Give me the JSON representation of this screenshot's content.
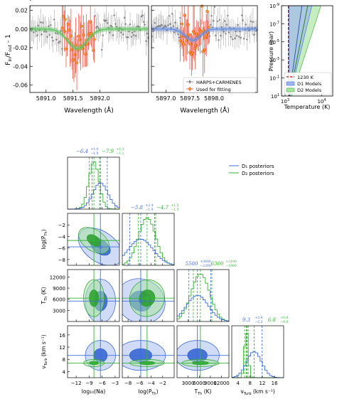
{
  "colors": {
    "data_gray": "#7f7f7f",
    "fit_red": "#e8402c",
    "fit_orange": "#f5a020",
    "model_green": "#5fc45f",
    "model_blue": "#6a8fe0",
    "d1_blue": "#3b63d6",
    "d2_green": "#2faa2f",
    "temp_red": "#cc0000",
    "contour_blue": "#3f6fd8",
    "contour_green": "#33b533"
  },
  "chart_data": [
    {
      "id": "spectrum-d2",
      "type": "scatter",
      "title": "",
      "xlabel": "Wavelength (Å)",
      "ylabel": "F_in/F_out - 1",
      "xlim": [
        5890.7,
        5892.9
      ],
      "ylim": [
        -0.068,
        0.025
      ],
      "xticks": [
        "5891.0",
        "5891.5",
        "5892.0"
      ],
      "xtick_values": [
        5891.0,
        5891.5,
        5892.0
      ],
      "yticks": [
        "0.02",
        "0.00",
        "-0.02",
        "-0.04",
        "-0.06"
      ],
      "ytick_values": [
        0.02,
        0.0,
        -0.02,
        -0.04,
        -0.06
      ],
      "line_center": 5891.58,
      "line_depth": -0.021,
      "line_width": 0.18,
      "fit_window": [
        5891.3,
        5891.9
      ],
      "grid": false
    },
    {
      "id": "spectrum-d1",
      "type": "scatter",
      "title": "",
      "xlabel": "Wavelength (Å)",
      "xlim": [
        5896.7,
        5898.9
      ],
      "ylim": [
        -0.068,
        0.025
      ],
      "xticks": [
        "5897.0",
        "5897.5",
        "5898.0"
      ],
      "xtick_values": [
        5897.0,
        5897.5,
        5898.0
      ],
      "line_center": 5897.56,
      "line_depth": -0.012,
      "line_width": 0.16,
      "fit_window": [
        5897.3,
        5897.9
      ],
      "legend": {
        "placement": "bottom-right",
        "entries": [
          "HARPS+CARMENES",
          "Used for fitting"
        ]
      }
    },
    {
      "id": "pt-profile",
      "type": "area",
      "xlabel": "Temperature (K)",
      "ylabel": "Pressure (bar)",
      "xscale": "log",
      "yscale": "log",
      "xlim": [
        800,
        20000
      ],
      "ylim": [
        10,
        1e-09
      ],
      "xticks": [
        "10^3",
        "10^4"
      ],
      "yticks": [
        "10^-9",
        "10^-7",
        "10^-5",
        "10^-3",
        "10^-1",
        "10^1"
      ],
      "ytick_values": [
        -9,
        -7,
        -5,
        -3,
        -1,
        1
      ],
      "isotherm_K": 1230,
      "legend": {
        "placement": "bottom-right",
        "entries": [
          "1230 K",
          "D1 Models",
          "D2 Models"
        ]
      }
    },
    {
      "id": "corner-plot",
      "type": "scatter",
      "parameters": [
        "log10(Na)",
        "log(P_Th)",
        "T_Th (K)",
        "v_Turb (km s^-1)"
      ],
      "xlabels": [
        "log₁₀(Na)",
        "log(P",
        "T",
        "v"
      ],
      "xlabel_subs": [
        "",
        "Th",
        "Th",
        "Turb"
      ],
      "xlabel_tails": [
        "",
        ")",
        " (K)",
        " (km s⁻¹)"
      ],
      "ylabels": [
        "log(P",
        "T",
        "v"
      ],
      "ylabel_subs": [
        "Th",
        "Th",
        "Turb"
      ],
      "ylabel_tails": [
        ")",
        " (K)",
        " (km s⁻¹)"
      ],
      "ranges": [
        [
          -14,
          -2
        ],
        [
          -9,
          0
        ],
        [
          0,
          14000
        ],
        [
          2,
          19
        ]
      ],
      "ticks": [
        [
          "−12",
          "−9",
          "−6",
          "−3"
        ],
        [
          "−8",
          "−6",
          "−4",
          "−2"
        ],
        [
          "3000",
          "6000",
          "9000",
          "12000"
        ],
        [
          "4",
          "8",
          "12",
          "16"
        ]
      ],
      "tick_values": [
        [
          -12,
          -9,
          -6,
          -3
        ],
        [
          -8,
          -6,
          -4,
          -2
        ],
        [
          3000,
          6000,
          9000,
          12000
        ],
        [
          4,
          8,
          12,
          16
        ]
      ],
      "d1_posteriors": {
        "name": "D₁ posteriors",
        "medians": [
          -6.4,
          -5.8,
          5500,
          9.3
        ],
        "upper_err": [
          1.6,
          2.4,
          3600,
          2.6
        ],
        "lower_err": [
          1.9,
          1.9,
          2300,
          2.3
        ],
        "med_labels": [
          "−6.4",
          "−5.8",
          "5500",
          "9.3"
        ],
        "up_labels": [
          "+1.6",
          "+2.4",
          "+3600",
          "+2.6"
        ],
        "lo_labels": [
          "−1.9",
          "−1.9",
          "−2300",
          "−2.3"
        ]
      },
      "d2_posteriors": {
        "name": "D₂ posteriors",
        "medians": [
          -7.9,
          -4.7,
          6300,
          6.8
        ],
        "upper_err": [
          1.3,
          1.5,
          3100,
          0.6
        ],
        "lower_err": [
          1.1,
          1.5,
          1900,
          0.6
        ],
        "med_labels": [
          "−7.9",
          "−4.7",
          "6300",
          "6.8"
        ],
        "up_labels": [
          "+1.3",
          "+1.5",
          "+3100",
          "+0.6"
        ],
        "lo_labels": [
          "−1.1",
          "−1.5",
          "−1900",
          "−0.6"
        ]
      },
      "legend": {
        "placement": "top-right",
        "entries": [
          "D₁ posteriors",
          "D₂ posteriors"
        ]
      }
    }
  ]
}
